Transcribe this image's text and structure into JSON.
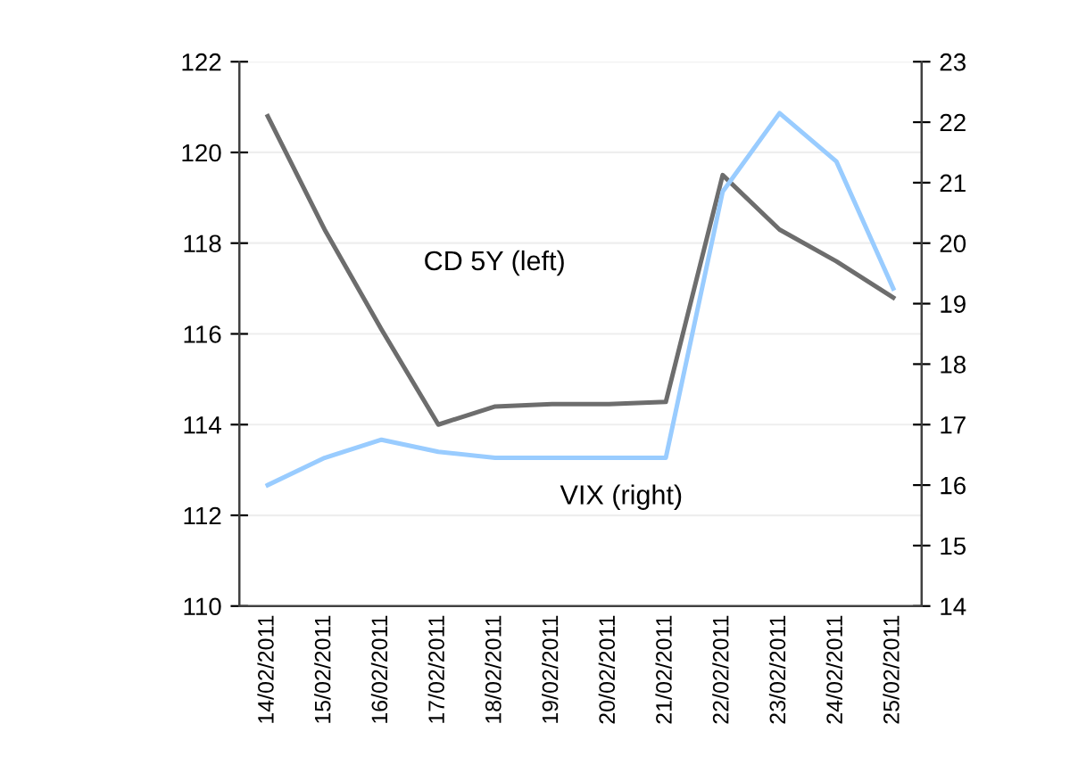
{
  "chart_data": {
    "type": "line",
    "categories": [
      "14/02/2011",
      "15/02/2011",
      "16/02/2011",
      "17/02/2011",
      "18/02/2011",
      "19/02/2011",
      "20/02/2011",
      "21/02/2011",
      "22/02/2011",
      "23/02/2011",
      "24/02/2011",
      "25/02/2011"
    ],
    "series": [
      {
        "name": "CD 5Y (left)",
        "color": "#6d6d6d",
        "values": [
          120.8,
          118.3,
          116.1,
          114.0,
          114.4,
          114.45,
          114.45,
          114.5,
          119.5,
          118.3,
          117.6,
          116.8
        ]
      },
      {
        "name": "VIX (right)",
        "color": "#99ccff",
        "axis": "y2",
        "values": [
          16.0,
          16.45,
          16.75,
          16.55,
          16.45,
          16.45,
          16.45,
          16.45,
          20.85,
          22.15,
          21.35,
          19.25
        ]
      }
    ],
    "ylim": [
      110,
      122
    ],
    "yticks": [
      110,
      112,
      114,
      116,
      118,
      120,
      122
    ],
    "y2lim": [
      14,
      23
    ],
    "y2ticks": [
      14,
      15,
      16,
      17,
      18,
      19,
      20,
      21,
      22,
      23
    ],
    "grid": "y",
    "legend": false,
    "marker": "none",
    "line_style": "solid"
  }
}
